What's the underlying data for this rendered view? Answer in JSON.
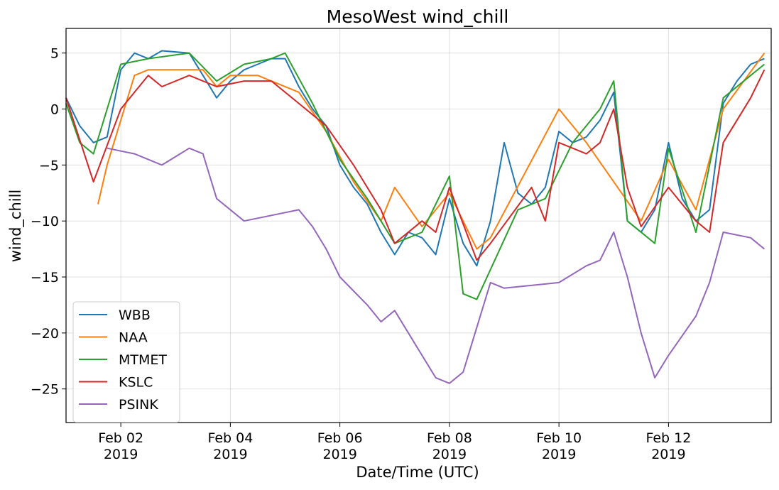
{
  "chart_data": {
    "type": "line",
    "title": "MesoWest wind_chill",
    "xlabel": "Date/Time (UTC)",
    "ylabel": "wind_chill",
    "xlim": [
      "2019-02-01T00:00",
      "2019-02-13T21:00"
    ],
    "ylim": [
      -28,
      7.2
    ],
    "grid": true,
    "legend_position": "lower-left",
    "x_ticks": [
      {
        "value": "2019-02-02",
        "line1": "Feb 02",
        "line2": "2019"
      },
      {
        "value": "2019-02-04",
        "line1": "Feb 04",
        "line2": "2019"
      },
      {
        "value": "2019-02-06",
        "line1": "Feb 06",
        "line2": "2019"
      },
      {
        "value": "2019-02-08",
        "line1": "Feb 08",
        "line2": "2019"
      },
      {
        "value": "2019-02-10",
        "line1": "Feb 10",
        "line2": "2019"
      },
      {
        "value": "2019-02-12",
        "line1": "Feb 12",
        "line2": "2019"
      }
    ],
    "y_ticks": [
      {
        "value": 5,
        "label": "5"
      },
      {
        "value": 0,
        "label": "0"
      },
      {
        "value": -5,
        "label": "−5"
      },
      {
        "value": -10,
        "label": "−10"
      },
      {
        "value": -15,
        "label": "−15"
      },
      {
        "value": -20,
        "label": "−20"
      },
      {
        "value": -25,
        "label": "−25"
      }
    ],
    "series": [
      {
        "name": "WBB",
        "color": "#1f77b4",
        "points": [
          [
            "2019-02-01T00:00",
            1.0
          ],
          [
            "2019-02-01T06:00",
            -1.5
          ],
          [
            "2019-02-01T12:00",
            -3.0
          ],
          [
            "2019-02-01T18:00",
            -2.5
          ],
          [
            "2019-02-02T00:00",
            3.5
          ],
          [
            "2019-02-02T06:00",
            5.0
          ],
          [
            "2019-02-02T12:00",
            4.5
          ],
          [
            "2019-02-02T18:00",
            5.2
          ],
          [
            "2019-02-03T06:00",
            5.0
          ],
          [
            "2019-02-03T12:00",
            3.0
          ],
          [
            "2019-02-03T18:00",
            1.0
          ],
          [
            "2019-02-04T00:00",
            2.5
          ],
          [
            "2019-02-04T06:00",
            3.5
          ],
          [
            "2019-02-04T12:00",
            4.0
          ],
          [
            "2019-02-04T18:00",
            4.5
          ],
          [
            "2019-02-05T00:00",
            4.5
          ],
          [
            "2019-02-05T06:00",
            2.0
          ],
          [
            "2019-02-05T12:00",
            0.0
          ],
          [
            "2019-02-05T18:00",
            -1.5
          ],
          [
            "2019-02-06T00:00",
            -5.0
          ],
          [
            "2019-02-06T06:00",
            -7.0
          ],
          [
            "2019-02-06T12:00",
            -8.5
          ],
          [
            "2019-02-06T18:00",
            -11.0
          ],
          [
            "2019-02-07T00:00",
            -13.0
          ],
          [
            "2019-02-07T06:00",
            -11.0
          ],
          [
            "2019-02-07T12:00",
            -11.5
          ],
          [
            "2019-02-07T18:00",
            -13.0
          ],
          [
            "2019-02-08T00:00",
            -8.0
          ],
          [
            "2019-02-08T06:00",
            -12.0
          ],
          [
            "2019-02-08T12:00",
            -14.0
          ],
          [
            "2019-02-08T18:00",
            -10.0
          ],
          [
            "2019-02-09T00:00",
            -3.0
          ],
          [
            "2019-02-09T06:00",
            -7.5
          ],
          [
            "2019-02-09T12:00",
            -8.5
          ],
          [
            "2019-02-09T18:00",
            -7.0
          ],
          [
            "2019-02-10T00:00",
            -2.0
          ],
          [
            "2019-02-10T06:00",
            -3.0
          ],
          [
            "2019-02-10T12:00",
            -2.5
          ],
          [
            "2019-02-10T18:00",
            -1.0
          ],
          [
            "2019-02-11T00:00",
            1.5
          ],
          [
            "2019-02-11T06:00",
            -10.0
          ],
          [
            "2019-02-11T12:00",
            -11.0
          ],
          [
            "2019-02-11T18:00",
            -9.0
          ],
          [
            "2019-02-12T00:00",
            -3.0
          ],
          [
            "2019-02-12T06:00",
            -8.0
          ],
          [
            "2019-02-12T12:00",
            -10.0
          ],
          [
            "2019-02-12T18:00",
            -9.0
          ],
          [
            "2019-02-13T00:00",
            0.5
          ],
          [
            "2019-02-13T06:00",
            2.5
          ],
          [
            "2019-02-13T12:00",
            4.0
          ],
          [
            "2019-02-13T18:00",
            4.5
          ]
        ]
      },
      {
        "name": "NAA",
        "color": "#ff7f0e",
        "points": [
          [
            "2019-02-01T14:00",
            -8.5
          ],
          [
            "2019-02-01T18:00",
            -5.0
          ],
          [
            "2019-02-02T06:00",
            3.0
          ],
          [
            "2019-02-02T12:00",
            3.5
          ],
          [
            "2019-02-03T12:00",
            3.5
          ],
          [
            "2019-02-03T18:00",
            2.0
          ],
          [
            "2019-02-04T00:00",
            3.0
          ],
          [
            "2019-02-04T12:00",
            3.0
          ],
          [
            "2019-02-05T06:00",
            1.5
          ],
          [
            "2019-02-05T18:00",
            -2.0
          ],
          [
            "2019-02-06T06:00",
            -6.5
          ],
          [
            "2019-02-06T18:00",
            -10.0
          ],
          [
            "2019-02-07T00:00",
            -7.0
          ],
          [
            "2019-02-07T12:00",
            -10.5
          ],
          [
            "2019-02-08T00:00",
            -7.5
          ],
          [
            "2019-02-08T12:00",
            -12.5
          ],
          [
            "2019-02-08T18:00",
            -11.5
          ],
          [
            "2019-02-10T00:00",
            0.0
          ],
          [
            "2019-02-10T12:00",
            -3.0
          ],
          [
            "2019-02-11T12:00",
            -10.0
          ],
          [
            "2019-02-12T00:00",
            -4.5
          ],
          [
            "2019-02-12T12:00",
            -9.0
          ],
          [
            "2019-02-13T00:00",
            0.0
          ],
          [
            "2019-02-13T18:00",
            5.0
          ]
        ]
      },
      {
        "name": "MTMET",
        "color": "#2ca02c",
        "points": [
          [
            "2019-02-01T00:00",
            0.5
          ],
          [
            "2019-02-01T06:00",
            -3.0
          ],
          [
            "2019-02-01T12:00",
            -4.0
          ],
          [
            "2019-02-02T00:00",
            4.0
          ],
          [
            "2019-02-02T12:00",
            4.5
          ],
          [
            "2019-02-03T06:00",
            5.0
          ],
          [
            "2019-02-03T18:00",
            2.5
          ],
          [
            "2019-02-04T06:00",
            4.0
          ],
          [
            "2019-02-04T18:00",
            4.5
          ],
          [
            "2019-02-05T00:00",
            5.0
          ],
          [
            "2019-02-05T12:00",
            0.5
          ],
          [
            "2019-02-06T00:00",
            -4.5
          ],
          [
            "2019-02-06T12:00",
            -8.0
          ],
          [
            "2019-02-07T00:00",
            -12.0
          ],
          [
            "2019-02-07T12:00",
            -11.0
          ],
          [
            "2019-02-08T00:00",
            -6.0
          ],
          [
            "2019-02-08T06:00",
            -16.5
          ],
          [
            "2019-02-08T12:00",
            -17.0
          ],
          [
            "2019-02-09T06:00",
            -9.0
          ],
          [
            "2019-02-09T18:00",
            -8.0
          ],
          [
            "2019-02-10T06:00",
            -3.0
          ],
          [
            "2019-02-10T18:00",
            0.0
          ],
          [
            "2019-02-11T00:00",
            2.5
          ],
          [
            "2019-02-11T06:00",
            -10.0
          ],
          [
            "2019-02-11T18:00",
            -12.0
          ],
          [
            "2019-02-12T00:00",
            -3.5
          ],
          [
            "2019-02-12T12:00",
            -11.0
          ],
          [
            "2019-02-13T00:00",
            1.0
          ],
          [
            "2019-02-13T12:00",
            3.0
          ],
          [
            "2019-02-13T18:00",
            4.0
          ]
        ]
      },
      {
        "name": "KSLC",
        "color": "#d62728",
        "points": [
          [
            "2019-02-01T00:00",
            1.0
          ],
          [
            "2019-02-01T12:00",
            -6.5
          ],
          [
            "2019-02-02T00:00",
            0.0
          ],
          [
            "2019-02-02T12:00",
            3.0
          ],
          [
            "2019-02-02T18:00",
            2.0
          ],
          [
            "2019-02-03T06:00",
            3.0
          ],
          [
            "2019-02-03T18:00",
            2.0
          ],
          [
            "2019-02-04T06:00",
            2.5
          ],
          [
            "2019-02-04T18:00",
            2.5
          ],
          [
            "2019-02-05T06:00",
            0.5
          ],
          [
            "2019-02-05T18:00",
            -1.5
          ],
          [
            "2019-02-06T06:00",
            -5.0
          ],
          [
            "2019-02-06T18:00",
            -9.0
          ],
          [
            "2019-02-07T00:00",
            -12.0
          ],
          [
            "2019-02-07T12:00",
            -10.0
          ],
          [
            "2019-02-07T18:00",
            -11.0
          ],
          [
            "2019-02-08T00:00",
            -7.0
          ],
          [
            "2019-02-08T12:00",
            -13.5
          ],
          [
            "2019-02-08T18:00",
            -12.0
          ],
          [
            "2019-02-09T12:00",
            -7.0
          ],
          [
            "2019-02-09T18:00",
            -10.0
          ],
          [
            "2019-02-10T00:00",
            -3.0
          ],
          [
            "2019-02-10T12:00",
            -4.0
          ],
          [
            "2019-02-10T18:00",
            -3.0
          ],
          [
            "2019-02-11T00:00",
            0.0
          ],
          [
            "2019-02-11T06:00",
            -7.0
          ],
          [
            "2019-02-11T12:00",
            -10.5
          ],
          [
            "2019-02-12T00:00",
            -7.0
          ],
          [
            "2019-02-12T12:00",
            -10.0
          ],
          [
            "2019-02-12T18:00",
            -11.0
          ],
          [
            "2019-02-13T00:00",
            -3.0
          ],
          [
            "2019-02-13T12:00",
            1.0
          ],
          [
            "2019-02-13T18:00",
            3.5
          ]
        ]
      },
      {
        "name": "PSINK",
        "color": "#9467bd",
        "points": [
          [
            "2019-02-01T18:00",
            -3.5
          ],
          [
            "2019-02-02T06:00",
            -4.0
          ],
          [
            "2019-02-02T18:00",
            -5.0
          ],
          [
            "2019-02-03T06:00",
            -3.5
          ],
          [
            "2019-02-03T12:00",
            -4.0
          ],
          [
            "2019-02-03T18:00",
            -8.0
          ],
          [
            "2019-02-04T06:00",
            -10.0
          ],
          [
            "2019-02-04T18:00",
            -9.5
          ],
          [
            "2019-02-05T06:00",
            -9.0
          ],
          [
            "2019-02-05T12:00",
            -10.5
          ],
          [
            "2019-02-05T18:00",
            -12.5
          ],
          [
            "2019-02-06T00:00",
            -15.0
          ],
          [
            "2019-02-06T12:00",
            -17.5
          ],
          [
            "2019-02-06T18:00",
            -19.0
          ],
          [
            "2019-02-07T00:00",
            -18.0
          ],
          [
            "2019-02-07T12:00",
            -22.0
          ],
          [
            "2019-02-07T18:00",
            -24.0
          ],
          [
            "2019-02-08T00:00",
            -24.5
          ],
          [
            "2019-02-08T06:00",
            -23.5
          ],
          [
            "2019-02-08T18:00",
            -15.5
          ],
          [
            "2019-02-09T00:00",
            -16.0
          ],
          [
            "2019-02-10T00:00",
            -15.5
          ],
          [
            "2019-02-10T12:00",
            -14.0
          ],
          [
            "2019-02-10T18:00",
            -13.5
          ],
          [
            "2019-02-11T00:00",
            -11.0
          ],
          [
            "2019-02-11T06:00",
            -15.0
          ],
          [
            "2019-02-11T12:00",
            -20.0
          ],
          [
            "2019-02-11T18:00",
            -24.0
          ],
          [
            "2019-02-12T00:00",
            -22.0
          ],
          [
            "2019-02-12T12:00",
            -18.5
          ],
          [
            "2019-02-12T18:00",
            -15.5
          ],
          [
            "2019-02-13T00:00",
            -11.0
          ],
          [
            "2019-02-13T12:00",
            -11.5
          ],
          [
            "2019-02-13T18:00",
            -12.5
          ]
        ]
      }
    ]
  }
}
